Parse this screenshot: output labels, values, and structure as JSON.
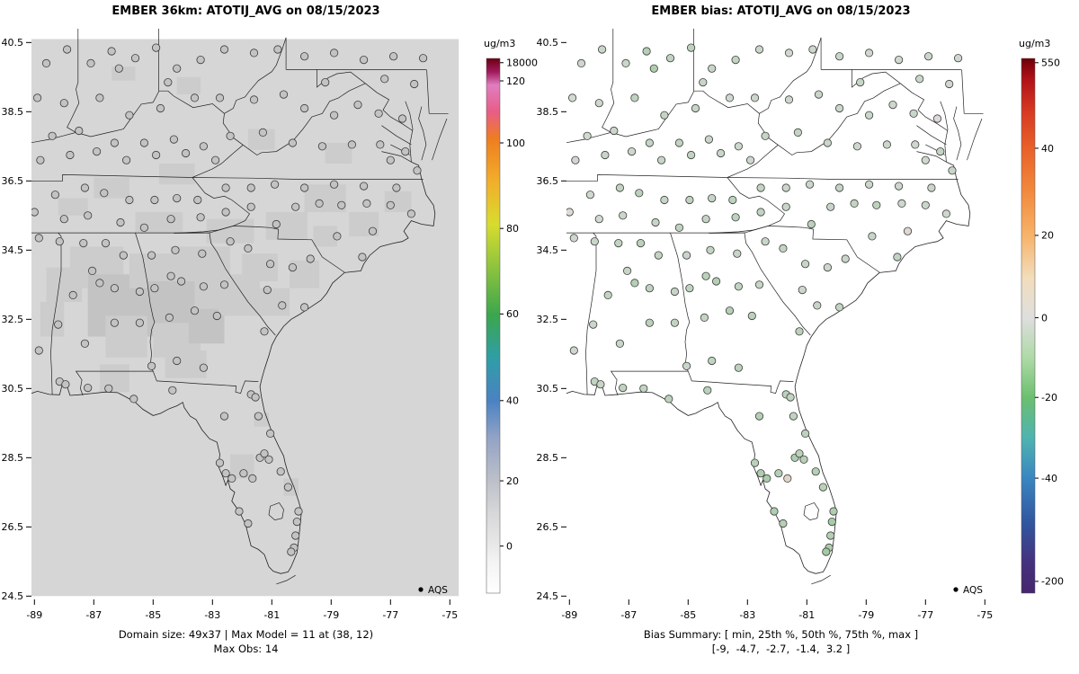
{
  "panels": [
    {
      "id": "model",
      "title": "EMBER 36km: ATOTIJ_AVG on 08/15/2023",
      "caption_line1": "Domain size: 49x37 | Max Model = 11 at (38, 12)",
      "caption_line2": "Max Obs: 14",
      "legend_label": "AQS",
      "colorbar": {
        "label": "ug/m3",
        "ticks": [
          {
            "label": "18000",
            "f": 0.008
          },
          {
            "label": "120",
            "f": 0.042
          },
          {
            "label": "100",
            "f": 0.158
          },
          {
            "label": "80",
            "f": 0.318
          },
          {
            "label": "60",
            "f": 0.478
          },
          {
            "label": "40",
            "f": 0.64
          },
          {
            "label": "20",
            "f": 0.79
          },
          {
            "label": "0",
            "f": 0.912
          }
        ],
        "gradient": [
          [
            0.0,
            "#ffffff"
          ],
          [
            0.06,
            "#f3f3f3"
          ],
          [
            0.09,
            "#e8e8e8"
          ],
          [
            0.15,
            "#d7d7d9"
          ],
          [
            0.21,
            "#bdc0c9"
          ],
          [
            0.29,
            "#93a3c6"
          ],
          [
            0.36,
            "#4a82c3"
          ],
          [
            0.44,
            "#2f9ea6"
          ],
          [
            0.52,
            "#3ba64d"
          ],
          [
            0.61,
            "#8ec43e"
          ],
          [
            0.69,
            "#d8dc2e"
          ],
          [
            0.77,
            "#f2ae2b"
          ],
          [
            0.85,
            "#ee7d20"
          ],
          [
            0.9,
            "#e85d87"
          ],
          [
            0.95,
            "#df7ec0"
          ],
          [
            0.975,
            "#a01a5d"
          ],
          [
            1.0,
            "#6b0010"
          ]
        ]
      }
    },
    {
      "id": "bias",
      "title": "EMBER bias: ATOTIJ_AVG on 08/15/2023",
      "caption_line1": "Bias Summary: [ min, 25th %, 50th %, 75th %, max ]",
      "caption_line2": "[-9,  -4.7,  -2.7,  -1.4,  3.2 ]",
      "legend_label": "AQS",
      "colorbar": {
        "label": "ug/m3",
        "ticks": [
          {
            "label": "550",
            "f": 0.008
          },
          {
            "label": "40",
            "f": 0.168
          },
          {
            "label": "20",
            "f": 0.331
          },
          {
            "label": "0",
            "f": 0.485
          },
          {
            "label": "-20",
            "f": 0.634
          },
          {
            "label": "-40",
            "f": 0.785
          },
          {
            "label": "-200",
            "f": 0.978
          }
        ],
        "gradient": [
          [
            0.0,
            "#46266e"
          ],
          [
            0.06,
            "#45327f"
          ],
          [
            0.13,
            "#31559f"
          ],
          [
            0.215,
            "#3a86c0"
          ],
          [
            0.29,
            "#4fb3b0"
          ],
          [
            0.366,
            "#6cbf70"
          ],
          [
            0.44,
            "#aedaa6"
          ],
          [
            0.515,
            "#dedede"
          ],
          [
            0.59,
            "#f2ddbb"
          ],
          [
            0.669,
            "#f7b36a"
          ],
          [
            0.75,
            "#f28a3d"
          ],
          [
            0.832,
            "#e9602a"
          ],
          [
            0.9,
            "#d73a22"
          ],
          [
            0.96,
            "#b21218"
          ],
          [
            0.985,
            "#8a0510"
          ],
          [
            1.0,
            "#690008"
          ]
        ]
      }
    }
  ],
  "axes": {
    "x_tick_values": [
      -89,
      -87,
      -85,
      -83,
      -81,
      -79,
      -77,
      -75
    ],
    "x_tick_labels": [
      "-89",
      "-87",
      "-85",
      "-83",
      "-81",
      "-79",
      "-77",
      "-75"
    ],
    "y_tick_values": [
      24.5,
      26.5,
      28.5,
      30.5,
      32.5,
      34.5,
      36.5,
      38.5,
      40.5
    ],
    "y_tick_labels": [
      "24.5",
      "26.5",
      "28.5",
      "30.5",
      "32.5",
      "34.5",
      "36.5",
      "38.5",
      "40.5"
    ]
  },
  "chart_data": {
    "type": "scatter",
    "title": "EMBER ATOTIJ_AVG model field and station bias maps on 08/15/2023",
    "x_range": [
      -89.1,
      -74.65
    ],
    "y_range": [
      24.4,
      40.95
    ],
    "date": "08/15/2023",
    "variable": "ATOTIJ_AVG",
    "units": "ug/m3",
    "model": {
      "domain_size": "49x37",
      "max_model": 11,
      "max_model_cell": "(38, 12)",
      "max_obs": 14
    },
    "bias_summary": {
      "labels": [
        "min",
        "25th %",
        "50th %",
        "75th %",
        "max"
      ],
      "values": [
        -9,
        -4.7,
        -2.7,
        -1.4,
        3.2
      ]
    },
    "field_base_color": "#d6d6d6",
    "field_shade_colors": [
      "#cccccc",
      "#c3c3c3"
    ],
    "marker_color_model": "#c3c3c3",
    "marker_outline": "#3c3c3c",
    "model_shaded_cells": [
      [
        -88.6,
        34.0,
        1.2,
        1.0,
        0
      ],
      [
        -87.8,
        34.6,
        1.8,
        1.2,
        0
      ],
      [
        -87.2,
        33.8,
        2.2,
        1.8,
        1
      ],
      [
        -85.8,
        34.4,
        1.6,
        1.0,
        0
      ],
      [
        -85.2,
        33.6,
        1.8,
        1.4,
        1
      ],
      [
        -84.4,
        34.6,
        2.0,
        1.0,
        0
      ],
      [
        -83.6,
        33.8,
        1.6,
        1.2,
        0
      ],
      [
        -86.6,
        32.6,
        1.4,
        1.2,
        0
      ],
      [
        -85.0,
        32.4,
        1.6,
        1.0,
        0
      ],
      [
        -83.8,
        32.8,
        1.2,
        1.0,
        1
      ],
      [
        -82.8,
        33.6,
        1.4,
        1.0,
        0
      ],
      [
        -82.0,
        34.4,
        1.2,
        0.8,
        0
      ],
      [
        -81.4,
        33.4,
        1.0,
        0.8,
        0
      ],
      [
        -84.6,
        31.6,
        1.4,
        0.8,
        0
      ],
      [
        -86.8,
        31.2,
        1.0,
        0.8,
        0
      ],
      [
        -88.8,
        33.0,
        0.8,
        1.0,
        0
      ],
      [
        -85.6,
        35.6,
        1.6,
        0.6,
        0
      ],
      [
        -83.2,
        35.4,
        1.6,
        0.7,
        0
      ],
      [
        -81.2,
        35.6,
        1.4,
        0.8,
        0
      ],
      [
        -79.9,
        36.4,
        1.4,
        0.8,
        0
      ],
      [
        -78.4,
        35.6,
        1.0,
        0.7,
        0
      ],
      [
        -77.2,
        36.2,
        0.9,
        0.6,
        0
      ],
      [
        -87.0,
        36.6,
        1.2,
        0.6,
        0
      ],
      [
        -84.8,
        37.0,
        1.2,
        0.6,
        0
      ],
      [
        -82.4,
        28.6,
        0.8,
        0.7,
        0
      ],
      [
        -81.6,
        29.8,
        0.5,
        0.4,
        0
      ],
      [
        -80.6,
        27.9,
        0.5,
        0.5,
        0
      ],
      [
        -79.2,
        37.6,
        0.9,
        0.6,
        0
      ],
      [
        -81.8,
        38.0,
        0.9,
        0.6,
        0
      ],
      [
        -84.2,
        39.5,
        0.8,
        0.5,
        0
      ],
      [
        -86.4,
        39.8,
        0.8,
        0.4,
        0
      ],
      [
        -88.2,
        36.0,
        1.0,
        0.5,
        0
      ],
      [
        -80.4,
        34.2,
        1.0,
        0.8,
        0
      ],
      [
        -79.6,
        35.2,
        0.8,
        0.6,
        0
      ]
    ],
    "stations_lon_lat_bias": [
      [
        -88.6,
        39.9,
        -2.2
      ],
      [
        -87.9,
        40.3,
        -3.1
      ],
      [
        -87.1,
        39.9,
        -2.8
      ],
      [
        -86.4,
        40.25,
        -6.2
      ],
      [
        -86.15,
        39.75,
        -7.1
      ],
      [
        -85.6,
        40.05,
        -4.4
      ],
      [
        -84.9,
        40.35,
        -5.0
      ],
      [
        -84.2,
        39.75,
        -3.4
      ],
      [
        -83.4,
        40.0,
        -4.1
      ],
      [
        -82.6,
        40.3,
        -2.5
      ],
      [
        -84.5,
        39.35,
        -3.2
      ],
      [
        -81.6,
        40.2,
        -2.0
      ],
      [
        -80.8,
        40.3,
        -2.4
      ],
      [
        -79.9,
        40.1,
        -3.0
      ],
      [
        -78.9,
        40.2,
        -2.2
      ],
      [
        -77.9,
        40.0,
        -1.8
      ],
      [
        -76.9,
        40.1,
        -2.6
      ],
      [
        -75.9,
        40.05,
        -2.0
      ],
      [
        -79.2,
        39.35,
        -3.5
      ],
      [
        -77.2,
        39.45,
        -2.7
      ],
      [
        -76.2,
        39.3,
        -1.9
      ],
      [
        -88.9,
        38.9,
        -1.5
      ],
      [
        -88.0,
        38.75,
        -2.3
      ],
      [
        -86.8,
        38.9,
        -4.6
      ],
      [
        -85.8,
        38.4,
        -4.0
      ],
      [
        -84.75,
        38.6,
        -3.3
      ],
      [
        -83.6,
        38.9,
        -2.1
      ],
      [
        -82.75,
        38.9,
        -3.0
      ],
      [
        -81.6,
        38.85,
        -2.4
      ],
      [
        -80.6,
        39.0,
        -3.2
      ],
      [
        -79.9,
        38.6,
        -2.6
      ],
      [
        -78.9,
        38.4,
        -2.9
      ],
      [
        -78.1,
        38.7,
        -2.2
      ],
      [
        -77.4,
        38.45,
        -3.1
      ],
      [
        -76.6,
        38.3,
        0.6
      ],
      [
        -88.4,
        37.8,
        -1.7
      ],
      [
        -87.5,
        37.95,
        -2.5
      ],
      [
        -86.3,
        37.6,
        -3.6
      ],
      [
        -85.3,
        37.6,
        -4.2
      ],
      [
        -84.3,
        37.7,
        -3.0
      ],
      [
        -83.3,
        37.5,
        -2.2
      ],
      [
        -82.4,
        37.8,
        -3.4
      ],
      [
        -81.3,
        37.9,
        -4.1
      ],
      [
        -80.3,
        37.6,
        -2.8
      ],
      [
        -79.3,
        37.5,
        -2.3
      ],
      [
        -78.3,
        37.55,
        -3.0
      ],
      [
        -77.35,
        37.55,
        -2.4
      ],
      [
        -76.5,
        37.35,
        -3.8
      ],
      [
        -77.0,
        37.1,
        -2.0
      ],
      [
        -88.8,
        37.1,
        -2.1
      ],
      [
        -87.8,
        37.25,
        -3.2
      ],
      [
        -86.9,
        37.35,
        -2.4
      ],
      [
        -85.9,
        37.1,
        -3.5
      ],
      [
        -84.9,
        37.25,
        -4.3
      ],
      [
        -83.9,
        37.3,
        -3.1
      ],
      [
        -82.9,
        37.1,
        -2.5
      ],
      [
        -88.3,
        36.1,
        -2.0
      ],
      [
        -87.3,
        36.3,
        -4.2
      ],
      [
        -86.65,
        36.15,
        -5.3
      ],
      [
        -85.8,
        35.95,
        -3.3
      ],
      [
        -84.95,
        35.95,
        -4.6
      ],
      [
        -84.2,
        36.0,
        -3.6
      ],
      [
        -83.5,
        35.95,
        -5.1
      ],
      [
        -82.55,
        36.3,
        -3.9
      ],
      [
        -81.7,
        36.3,
        -2.7
      ],
      [
        -80.9,
        36.4,
        -2.9
      ],
      [
        -79.9,
        36.3,
        -3.7
      ],
      [
        -78.9,
        36.4,
        -2.6
      ],
      [
        -77.9,
        36.35,
        -2.2
      ],
      [
        -76.8,
        36.3,
        -2.8
      ],
      [
        -76.1,
        36.8,
        -3.3
      ],
      [
        -89.0,
        35.6,
        1.2
      ],
      [
        -88.0,
        35.4,
        -1.6
      ],
      [
        -87.2,
        35.5,
        -2.8
      ],
      [
        -86.1,
        35.3,
        -3.4
      ],
      [
        -85.3,
        35.15,
        -4.4
      ],
      [
        -84.4,
        35.4,
        -3.8
      ],
      [
        -83.4,
        35.45,
        -4.9
      ],
      [
        -82.55,
        35.6,
        -4.3
      ],
      [
        -81.7,
        35.75,
        -3.2
      ],
      [
        -80.85,
        35.25,
        -5.2
      ],
      [
        -80.2,
        35.75,
        -3.5
      ],
      [
        -79.4,
        35.85,
        -3.9
      ],
      [
        -78.65,
        35.8,
        -5.0
      ],
      [
        -77.8,
        35.85,
        -2.4
      ],
      [
        -77.0,
        35.8,
        -3.1
      ],
      [
        -76.3,
        35.55,
        -2.2
      ],
      [
        -77.6,
        35.05,
        1.6
      ],
      [
        -78.8,
        34.9,
        -3.3
      ],
      [
        -77.95,
        34.3,
        -4.2
      ],
      [
        -82.4,
        34.75,
        -3.1
      ],
      [
        -81.8,
        34.55,
        -4.0
      ],
      [
        -81.05,
        34.1,
        -3.3
      ],
      [
        -80.3,
        34.0,
        -2.4
      ],
      [
        -79.7,
        34.25,
        -3.2
      ],
      [
        -79.9,
        32.85,
        -4.1
      ],
      [
        -80.65,
        32.9,
        -3.4
      ],
      [
        -81.15,
        33.35,
        -2.6
      ],
      [
        -84.4,
        33.75,
        -5.4
      ],
      [
        -84.05,
        33.6,
        -6.3
      ],
      [
        -83.3,
        33.45,
        -4.2
      ],
      [
        -82.6,
        33.5,
        -3.3
      ],
      [
        -84.95,
        33.4,
        -4.4
      ],
      [
        -85.05,
        34.35,
        -3.2
      ],
      [
        -84.25,
        34.5,
        -4.3
      ],
      [
        -83.35,
        34.4,
        -3.5
      ],
      [
        -82.85,
        32.6,
        -5.2
      ],
      [
        -83.6,
        32.75,
        -6.1
      ],
      [
        -84.45,
        32.55,
        -4.0
      ],
      [
        -81.25,
        32.15,
        -5.3
      ],
      [
        -84.2,
        31.3,
        -4.4
      ],
      [
        -83.3,
        31.1,
        -5.0
      ],
      [
        -85.05,
        31.15,
        -3.1
      ],
      [
        -88.85,
        34.85,
        -2.3
      ],
      [
        -88.15,
        34.75,
        -3.1
      ],
      [
        -87.35,
        34.7,
        -4.3
      ],
      [
        -86.6,
        34.7,
        -5.2
      ],
      [
        -86.0,
        34.35,
        -4.1
      ],
      [
        -87.05,
        33.9,
        -3.3
      ],
      [
        -86.8,
        33.55,
        -6.4
      ],
      [
        -86.3,
        33.4,
        -4.5
      ],
      [
        -85.45,
        33.3,
        -3.4
      ],
      [
        -87.7,
        33.2,
        -4.1
      ],
      [
        -88.2,
        32.35,
        -3.0
      ],
      [
        -86.3,
        32.4,
        -5.3
      ],
      [
        -85.45,
        32.4,
        -4.2
      ],
      [
        -87.3,
        31.8,
        -3.2
      ],
      [
        -88.85,
        31.6,
        -2.4
      ],
      [
        -88.15,
        30.7,
        -4.3
      ],
      [
        -87.95,
        30.62,
        -3.3
      ],
      [
        -86.5,
        30.5,
        -4.2
      ],
      [
        -87.2,
        30.52,
        -4.6
      ],
      [
        -85.65,
        30.2,
        -5.1
      ],
      [
        -84.35,
        30.45,
        -5.4
      ],
      [
        -82.6,
        29.7,
        -6.2
      ],
      [
        -81.7,
        30.33,
        -5.0
      ],
      [
        -81.55,
        30.25,
        -4.1
      ],
      [
        -81.45,
        29.7,
        -4.4
      ],
      [
        -81.05,
        29.2,
        -5.2
      ],
      [
        -82.55,
        28.05,
        -7.3
      ],
      [
        -82.35,
        27.9,
        -8.1
      ],
      [
        -81.95,
        28.05,
        -6.4
      ],
      [
        -81.4,
        28.5,
        -7.2
      ],
      [
        -81.25,
        28.62,
        -5.3
      ],
      [
        -81.1,
        28.45,
        -6.0
      ],
      [
        -80.7,
        28.1,
        -6.3
      ],
      [
        -80.45,
        27.65,
        -5.4
      ],
      [
        -80.1,
        26.95,
        -7.2
      ],
      [
        -80.15,
        26.65,
        -8.3
      ],
      [
        -80.2,
        26.25,
        -6.4
      ],
      [
        -80.25,
        25.9,
        -7.3
      ],
      [
        -80.35,
        25.78,
        -9.0
      ],
      [
        -81.8,
        26.6,
        -6.2
      ],
      [
        -82.1,
        26.95,
        -7.1
      ],
      [
        -82.75,
        28.35,
        -5.5
      ],
      [
        -81.65,
        27.9,
        3.2
      ]
    ]
  }
}
